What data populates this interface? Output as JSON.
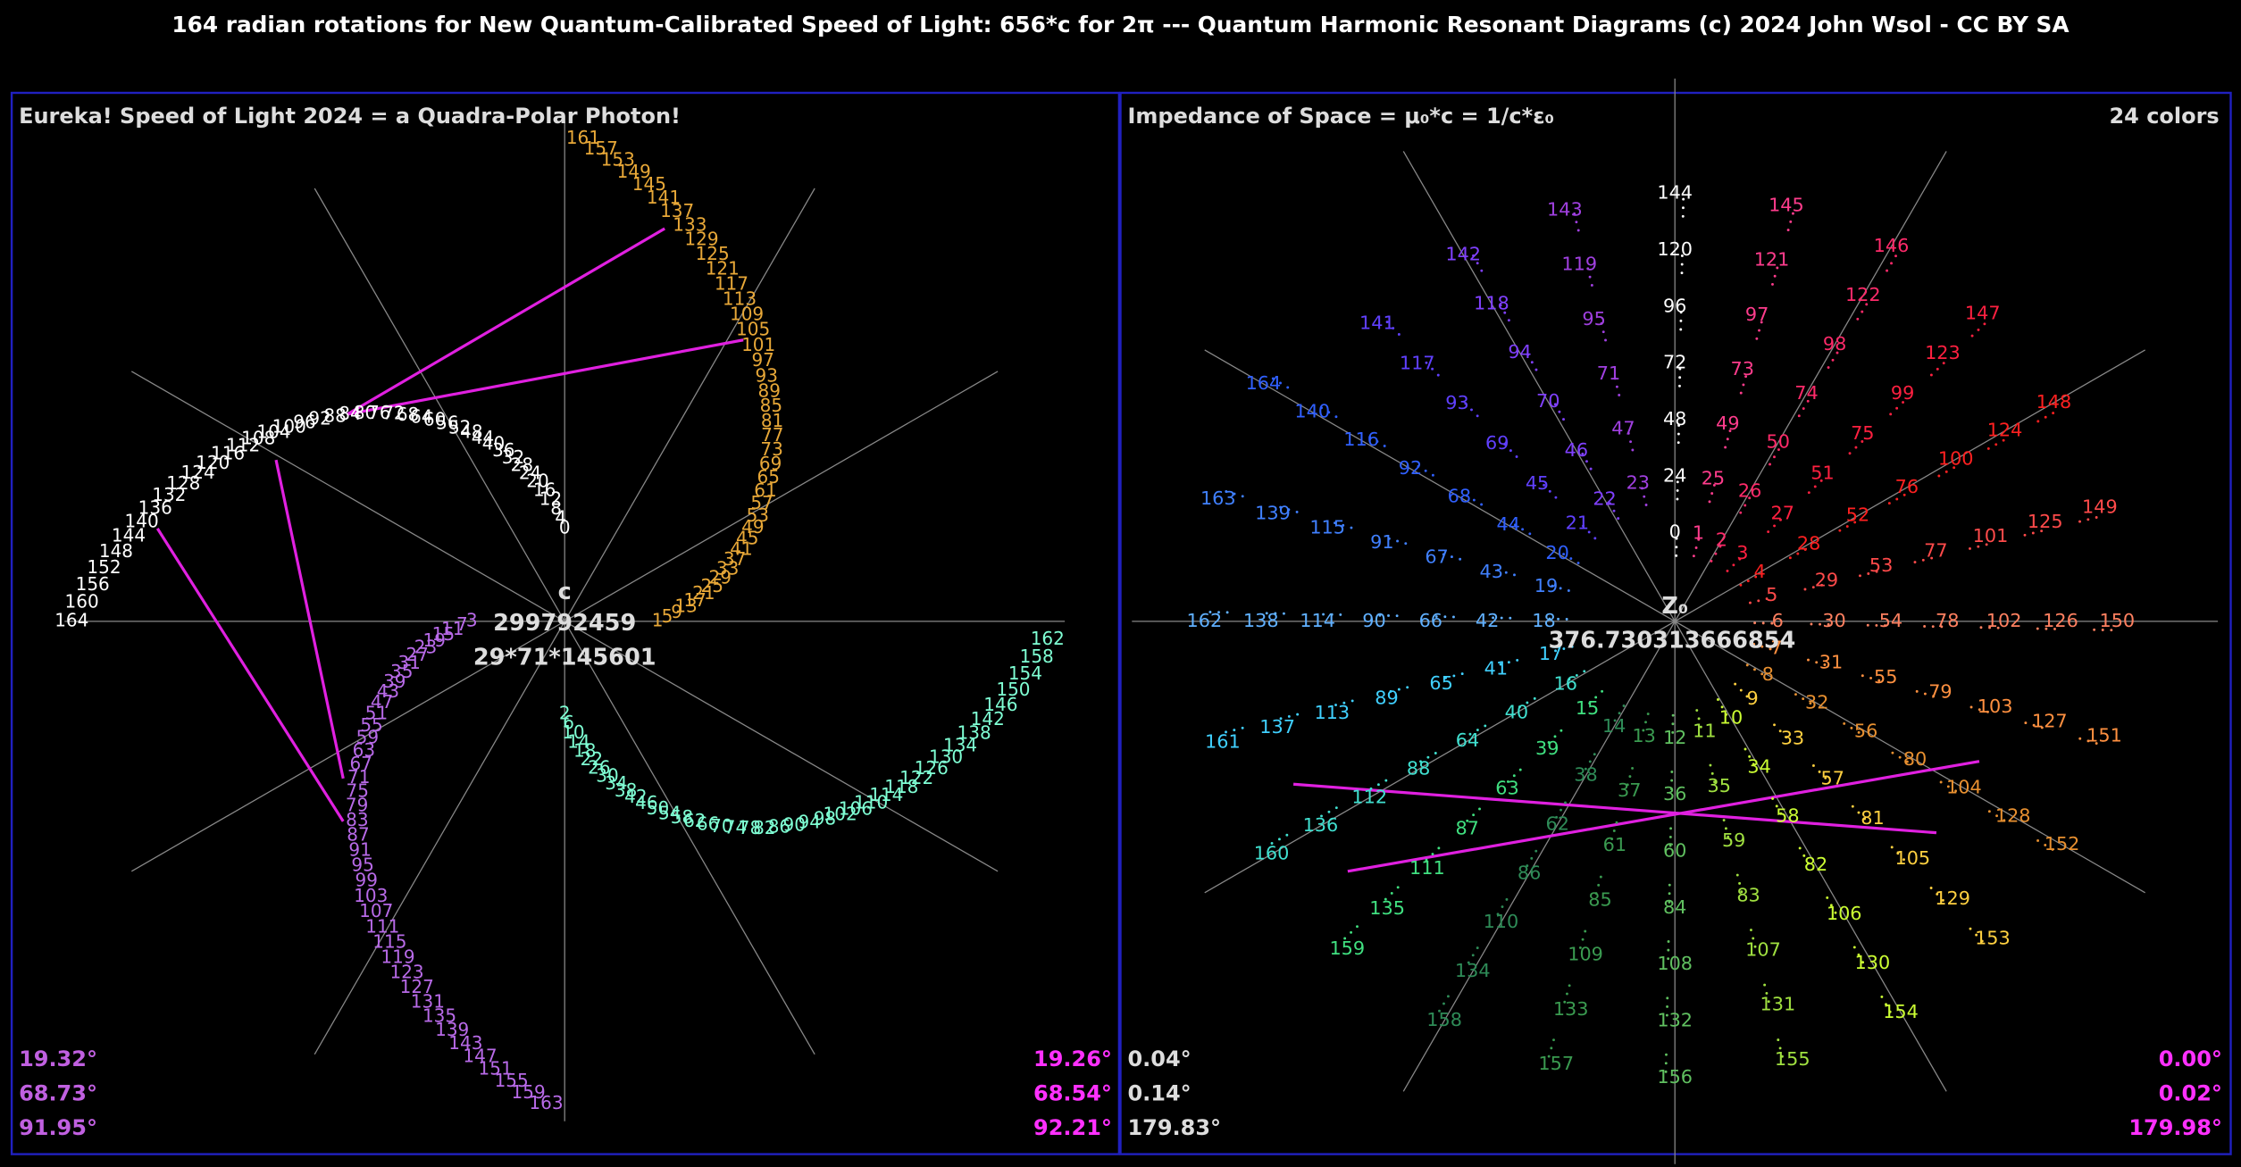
{
  "title": "164 radian rotations for New Quantum-Calibrated Speed of Light: 656*c for 2π --- Quantum Harmonic Resonant Diagrams  (c) 2024 John Wsol - CC BY SA",
  "left_panel": {
    "title": "Eureka! Speed of Light 2024 = a Quadra-Polar Photon!",
    "center_labels": [
      "c",
      "299792459",
      "29*71*145601"
    ],
    "arm_colors": [
      "#ffffff",
      "#e8a838",
      "#7fffd4",
      "#b86ae8"
    ],
    "point_labels": [
      0,
      1,
      2,
      3,
      4,
      5,
      6,
      7,
      8,
      9,
      10,
      11,
      12,
      13,
      14,
      15,
      16,
      17,
      18,
      19,
      20,
      21,
      22,
      23,
      24,
      25,
      26,
      27,
      28,
      29,
      30,
      31,
      32,
      33,
      34,
      35,
      36,
      37,
      38,
      39,
      40,
      41,
      42,
      43,
      44,
      45,
      46,
      47,
      48,
      49,
      50,
      51,
      52,
      53,
      54,
      55,
      56,
      57,
      58,
      59,
      60,
      61,
      62,
      63,
      64,
      65,
      66,
      67,
      68,
      69,
      70,
      71,
      72,
      73,
      74,
      75,
      76,
      77,
      78,
      79,
      80,
      81,
      82,
      83,
      84,
      85,
      86,
      87,
      88,
      89,
      90,
      91,
      92,
      93,
      94,
      95,
      96,
      97,
      98,
      99,
      100,
      101,
      102,
      103,
      104,
      105,
      106,
      107,
      108,
      109,
      110,
      111,
      112,
      113,
      114,
      115,
      116,
      117,
      118,
      119,
      120,
      121,
      122,
      123,
      124,
      125,
      126,
      127,
      128,
      129,
      130,
      131,
      132,
      133,
      134,
      135,
      136,
      137,
      138,
      139,
      140,
      141,
      142,
      143,
      144,
      145,
      146,
      147,
      148,
      149,
      150,
      151,
      152,
      153,
      154,
      155,
      156,
      157,
      158,
      159,
      160,
      161,
      162,
      163,
      164
    ],
    "angles_left": [
      "19.32°",
      "68.73°",
      "91.95°"
    ],
    "angles_right": [
      "19.26°",
      "68.54°",
      "92.21°"
    ]
  },
  "right_panel": {
    "title": "Impedance of Space = μ₀*c = 1/c*ε₀",
    "subtitle": "24 colors",
    "center_labels": [
      "Z₀",
      "376.730313666854"
    ],
    "ray_colors": [
      "#ffffff",
      "#ff3c8c",
      "#ff2a6a",
      "#ff2040",
      "#ff2020",
      "#ff4a4a",
      "#ff8060",
      "#ff9040",
      "#e89030",
      "#ffd040",
      "#ccff33",
      "#a0e040",
      "#60c060",
      "#3a9a50",
      "#2e8b57",
      "#40e080",
      "#40e0d0",
      "#40d0ff",
      "#60b0ff",
      "#4080ff",
      "#3060ff",
      "#6040ff",
      "#8040ff",
      "#a040e0"
    ],
    "point_labels": [
      0,
      1,
      2,
      3,
      4,
      5,
      6,
      7,
      8,
      9,
      10,
      11,
      12,
      13,
      14,
      15,
      16,
      17,
      18,
      19,
      20,
      21,
      22,
      23,
      24,
      25,
      26,
      27,
      28,
      29,
      30,
      31,
      32,
      33,
      34,
      35,
      36,
      37,
      38,
      39,
      40,
      41,
      42,
      43,
      44,
      45,
      46,
      47,
      48,
      49,
      50,
      51,
      52,
      53,
      54,
      55,
      56,
      57,
      58,
      59,
      60,
      61,
      62,
      63,
      64,
      65,
      66,
      67,
      68,
      69,
      70,
      71,
      72,
      73,
      74,
      75,
      76,
      77,
      78,
      79,
      80,
      81,
      82,
      83,
      84,
      85,
      86,
      87,
      88,
      89,
      90,
      91,
      92,
      93,
      94,
      95,
      96,
      97,
      98,
      99,
      100,
      101,
      102,
      103,
      104,
      105,
      106,
      107,
      108,
      109,
      110,
      111,
      112,
      113,
      114,
      115,
      116,
      117,
      118,
      119,
      120,
      121,
      122,
      123,
      124,
      125,
      126,
      127,
      128,
      129,
      130,
      131,
      132,
      133,
      134,
      135,
      136,
      137,
      138,
      139,
      140,
      141,
      142,
      143,
      144,
      145,
      146,
      147,
      148,
      149,
      150,
      151,
      152,
      153,
      154,
      155,
      156,
      157,
      158,
      159,
      160,
      161,
      162,
      163,
      164
    ],
    "angles_left": [
      "0.04°",
      "0.14°",
      "179.83°"
    ],
    "angles_right": [
      "0.00°",
      "0.02°",
      "179.98°"
    ]
  }
}
